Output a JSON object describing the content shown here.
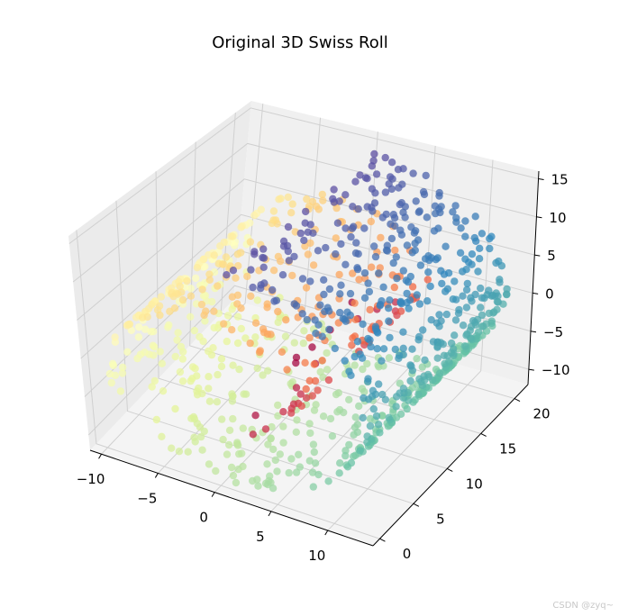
{
  "watermark": "CSDN @zyq~",
  "chart_data": {
    "type": "scatter3d",
    "title": "Original 3D Swiss Roll",
    "x_ticks": [
      "−10",
      "−5",
      "0",
      "5",
      "10"
    ],
    "y_ticks": [
      "0",
      "5",
      "10",
      "15",
      "20"
    ],
    "z_ticks": [
      "−10",
      "−5",
      "0",
      "5",
      "10",
      "15"
    ],
    "xlim": [
      -11,
      14
    ],
    "ylim": [
      -1,
      22
    ],
    "zlim": [
      -12,
      16
    ],
    "grid": true,
    "colormap": "Spectral",
    "marker_alpha": 0.75,
    "points": {
      "description_of_shape": "Swiss roll: x = t*cos(t), z = t*sin(t), y uniform 0–21; color by t",
      "t_range": [
        4.7,
        14.1
      ],
      "count": 1000
    },
    "pane_color": "#f2f2f2",
    "grid_color": "#d0d0d0"
  }
}
